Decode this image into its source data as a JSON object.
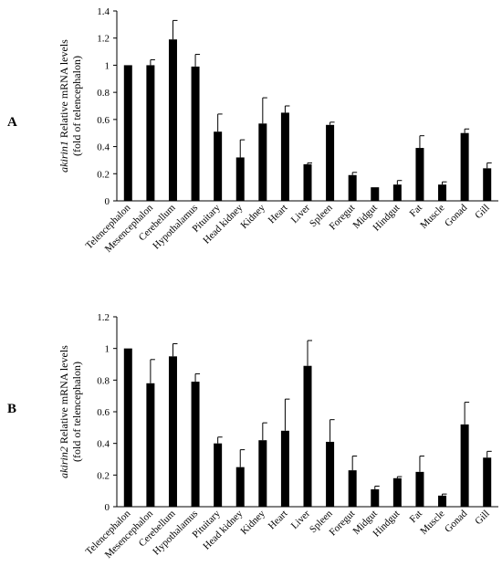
{
  "panels": [
    {
      "label": "A"
    },
    {
      "label": "B"
    }
  ],
  "chart_data": [
    {
      "type": "bar",
      "panel": "A",
      "ylabel_italic": "akirin1",
      "ylabel_rest": " Relative mRNA levels",
      "ylabel_line2": "(fold of telencephalon)",
      "ylim": [
        0,
        1.4
      ],
      "yticks": [
        "0",
        "0.2",
        "0.4",
        "0.6",
        "0.8",
        "1",
        "1.2",
        "1.4"
      ],
      "categories": [
        "Telencephalon",
        "Mesencephalon",
        "Cerebellum",
        "Hypothalamus",
        "Pituitary",
        "Head kidney",
        "Kidney",
        "Heart",
        "Liver",
        "Spleen",
        "Foregut",
        "Midgut",
        "Hindgut",
        "Fat",
        "Muscle",
        "Gonad",
        "Gill"
      ],
      "values": [
        1.0,
        1.0,
        1.19,
        0.99,
        0.51,
        0.32,
        0.57,
        0.65,
        0.27,
        0.56,
        0.19,
        0.1,
        0.12,
        0.39,
        0.12,
        0.5,
        0.24
      ],
      "errors": [
        0.0,
        0.04,
        0.14,
        0.09,
        0.13,
        0.13,
        0.19,
        0.05,
        0.01,
        0.02,
        0.02,
        0.0,
        0.03,
        0.09,
        0.02,
        0.03,
        0.04
      ],
      "bar_color": "#000000"
    },
    {
      "type": "bar",
      "panel": "B",
      "ylabel_italic": "akirin2",
      "ylabel_rest": " Relative mRNA levels",
      "ylabel_line2": "(fold of telencephalon)",
      "ylim": [
        0,
        1.2
      ],
      "yticks": [
        "0",
        "0.2",
        "0.4",
        "0.6",
        "0.8",
        "1",
        "1.2"
      ],
      "categories": [
        "Telencephalon",
        "Mesencephalon",
        "Cerebellum",
        "Hypothalamus",
        "Pituitary",
        "Head kidney",
        "Kidney",
        "Heart",
        "Liver",
        "Spleen",
        "Foregut",
        "Midgut",
        "Hindgut",
        "Fat",
        "Muscle",
        "Gonad",
        "Gill"
      ],
      "values": [
        1.0,
        0.78,
        0.95,
        0.79,
        0.4,
        0.25,
        0.42,
        0.48,
        0.89,
        0.41,
        0.23,
        0.11,
        0.18,
        0.22,
        0.07,
        0.52,
        0.31
      ],
      "errors": [
        0.0,
        0.15,
        0.08,
        0.05,
        0.04,
        0.11,
        0.11,
        0.2,
        0.16,
        0.14,
        0.09,
        0.02,
        0.01,
        0.1,
        0.01,
        0.14,
        0.04
      ],
      "bar_color": "#000000"
    }
  ]
}
